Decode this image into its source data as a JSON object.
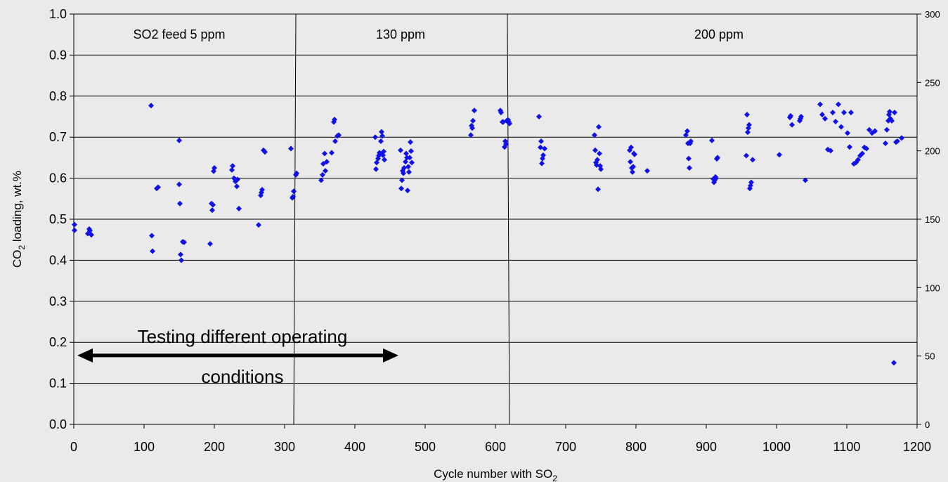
{
  "chart_data": {
    "type": "scatter",
    "xlabel": "Cycle number with SO",
    "xlabel_sub": "2",
    "ylabel_pre": "CO",
    "ylabel_sub": "2",
    "ylabel_post": " loading, wt.%",
    "xlim": [
      0,
      1200
    ],
    "ylim": [
      0,
      1.0
    ],
    "y2lim": [
      0,
      300
    ],
    "grid": true,
    "x_ticks": [
      "0",
      "100",
      "200",
      "300",
      "400",
      "500",
      "600",
      "700",
      "800",
      "900",
      "1000",
      "1100",
      "1200"
    ],
    "y_ticks": [
      "0.0",
      "0.1",
      "0.2",
      "0.3",
      "0.4",
      "0.5",
      "0.6",
      "0.7",
      "0.8",
      "0.9",
      "1.0"
    ],
    "y2_ticks": [
      "0",
      "50",
      "100",
      "150",
      "200",
      "250",
      "300"
    ],
    "regions": [
      {
        "label": "SO2 feed 5 ppm",
        "x_center": 150
      },
      {
        "label": "130 ppm",
        "x_center": 465
      },
      {
        "label": "200 ppm",
        "x_center": 918
      }
    ],
    "dividers": [
      {
        "x_top": 316,
        "x_bottom": 313
      },
      {
        "x_top": 617,
        "x_bottom": 620
      }
    ],
    "annotation": {
      "line1": "Testing different operating",
      "line2": "conditions",
      "arrow_from_x": 5,
      "arrow_to_x": 462,
      "arrow_y": 0.168
    },
    "series_color": "#1010e8",
    "points": [
      [
        1,
        0.487
      ],
      [
        1,
        0.473
      ],
      [
        20,
        0.465
      ],
      [
        22,
        0.476
      ],
      [
        23,
        0.472
      ],
      [
        25,
        0.462
      ],
      [
        110,
        0.777
      ],
      [
        111,
        0.46
      ],
      [
        112,
        0.422
      ],
      [
        118,
        0.575
      ],
      [
        120,
        0.578
      ],
      [
        150,
        0.692
      ],
      [
        150,
        0.585
      ],
      [
        151,
        0.538
      ],
      [
        152,
        0.414
      ],
      [
        153,
        0.4
      ],
      [
        155,
        0.445
      ],
      [
        157,
        0.444
      ],
      [
        194,
        0.44
      ],
      [
        196,
        0.538
      ],
      [
        197,
        0.522
      ],
      [
        198,
        0.535
      ],
      [
        199,
        0.617
      ],
      [
        200,
        0.625
      ],
      [
        225,
        0.62
      ],
      [
        226,
        0.63
      ],
      [
        228,
        0.6
      ],
      [
        230,
        0.592
      ],
      [
        232,
        0.58
      ],
      [
        233,
        0.597
      ],
      [
        235,
        0.526
      ],
      [
        263,
        0.486
      ],
      [
        266,
        0.558
      ],
      [
        267,
        0.565
      ],
      [
        268,
        0.572
      ],
      [
        270,
        0.668
      ],
      [
        272,
        0.664
      ],
      [
        309,
        0.672
      ],
      [
        311,
        0.552
      ],
      [
        312,
        0.555
      ],
      [
        313,
        0.568
      ],
      [
        316,
        0.608
      ],
      [
        317,
        0.612
      ],
      [
        352,
        0.595
      ],
      [
        354,
        0.608
      ],
      [
        355,
        0.635
      ],
      [
        357,
        0.66
      ],
      [
        358,
        0.618
      ],
      [
        360,
        0.64
      ],
      [
        367,
        0.662
      ],
      [
        370,
        0.737
      ],
      [
        371,
        0.743
      ],
      [
        372,
        0.69
      ],
      [
        375,
        0.703
      ],
      [
        377,
        0.705
      ],
      [
        429,
        0.7
      ],
      [
        430,
        0.622
      ],
      [
        431,
        0.638
      ],
      [
        433,
        0.648
      ],
      [
        434,
        0.655
      ],
      [
        435,
        0.662
      ],
      [
        436,
        0.66
      ],
      [
        437,
        0.69
      ],
      [
        438,
        0.713
      ],
      [
        439,
        0.703
      ],
      [
        440,
        0.656
      ],
      [
        441,
        0.665
      ],
      [
        442,
        0.645
      ],
      [
        465,
        0.668
      ],
      [
        466,
        0.575
      ],
      [
        467,
        0.595
      ],
      [
        468,
        0.618
      ],
      [
        469,
        0.612
      ],
      [
        470,
        0.625
      ],
      [
        472,
        0.64
      ],
      [
        473,
        0.66
      ],
      [
        474,
        0.65
      ],
      [
        475,
        0.57
      ],
      [
        476,
        0.628
      ],
      [
        477,
        0.615
      ],
      [
        478,
        0.65
      ],
      [
        479,
        0.688
      ],
      [
        480,
        0.666
      ],
      [
        481,
        0.638
      ],
      [
        565,
        0.705
      ],
      [
        566,
        0.728
      ],
      [
        567,
        0.722
      ],
      [
        568,
        0.74
      ],
      [
        570,
        0.765
      ],
      [
        607,
        0.765
      ],
      [
        608,
        0.76
      ],
      [
        610,
        0.737
      ],
      [
        611,
        0.737
      ],
      [
        613,
        0.676
      ],
      [
        614,
        0.69
      ],
      [
        615,
        0.683
      ],
      [
        616,
        0.74
      ],
      [
        618,
        0.742
      ],
      [
        619,
        0.737
      ],
      [
        620,
        0.733
      ],
      [
        662,
        0.75
      ],
      [
        664,
        0.675
      ],
      [
        665,
        0.69
      ],
      [
        666,
        0.636
      ],
      [
        667,
        0.648
      ],
      [
        668,
        0.656
      ],
      [
        670,
        0.672
      ],
      [
        741,
        0.705
      ],
      [
        742,
        0.668
      ],
      [
        743,
        0.638
      ],
      [
        744,
        0.632
      ],
      [
        745,
        0.645
      ],
      [
        746,
        0.573
      ],
      [
        747,
        0.725
      ],
      [
        748,
        0.66
      ],
      [
        749,
        0.63
      ],
      [
        750,
        0.622
      ],
      [
        791,
        0.668
      ],
      [
        792,
        0.64
      ],
      [
        793,
        0.675
      ],
      [
        794,
        0.625
      ],
      [
        795,
        0.615
      ],
      [
        796,
        0.628
      ],
      [
        797,
        0.66
      ],
      [
        798,
        0.658
      ],
      [
        816,
        0.618
      ],
      [
        871,
        0.705
      ],
      [
        873,
        0.715
      ],
      [
        874,
        0.685
      ],
      [
        875,
        0.648
      ],
      [
        876,
        0.625
      ],
      [
        877,
        0.685
      ],
      [
        878,
        0.69
      ],
      [
        908,
        0.692
      ],
      [
        910,
        0.598
      ],
      [
        911,
        0.59
      ],
      [
        912,
        0.595
      ],
      [
        913,
        0.603
      ],
      [
        914,
        0.6
      ],
      [
        915,
        0.647
      ],
      [
        916,
        0.65
      ],
      [
        957,
        0.655
      ],
      [
        958,
        0.755
      ],
      [
        959,
        0.712
      ],
      [
        960,
        0.722
      ],
      [
        961,
        0.73
      ],
      [
        962,
        0.575
      ],
      [
        963,
        0.582
      ],
      [
        964,
        0.59
      ],
      [
        966,
        0.645
      ],
      [
        1004,
        0.657
      ],
      [
        1019,
        0.748
      ],
      [
        1020,
        0.752
      ],
      [
        1022,
        0.73
      ],
      [
        1033,
        0.74
      ],
      [
        1034,
        0.745
      ],
      [
        1035,
        0.75
      ],
      [
        1041,
        0.595
      ],
      [
        1062,
        0.78
      ],
      [
        1065,
        0.755
      ],
      [
        1069,
        0.745
      ],
      [
        1073,
        0.67
      ],
      [
        1077,
        0.667
      ],
      [
        1080,
        0.76
      ],
      [
        1084,
        0.738
      ],
      [
        1088,
        0.78
      ],
      [
        1092,
        0.725
      ],
      [
        1096,
        0.76
      ],
      [
        1101,
        0.71
      ],
      [
        1104,
        0.676
      ],
      [
        1106,
        0.76
      ],
      [
        1110,
        0.635
      ],
      [
        1113,
        0.638
      ],
      [
        1116,
        0.645
      ],
      [
        1119,
        0.655
      ],
      [
        1122,
        0.66
      ],
      [
        1125,
        0.675
      ],
      [
        1128,
        0.672
      ],
      [
        1132,
        0.718
      ],
      [
        1136,
        0.71
      ],
      [
        1140,
        0.715
      ],
      [
        1155,
        0.685
      ],
      [
        1157,
        0.718
      ],
      [
        1159,
        0.74
      ],
      [
        1160,
        0.755
      ],
      [
        1161,
        0.762
      ],
      [
        1162,
        0.745
      ],
      [
        1164,
        0.74
      ],
      [
        1167,
        0.15
      ],
      [
        1168,
        0.76
      ],
      [
        1170,
        0.688
      ],
      [
        1172,
        0.69
      ],
      [
        1178,
        0.698
      ]
    ]
  }
}
